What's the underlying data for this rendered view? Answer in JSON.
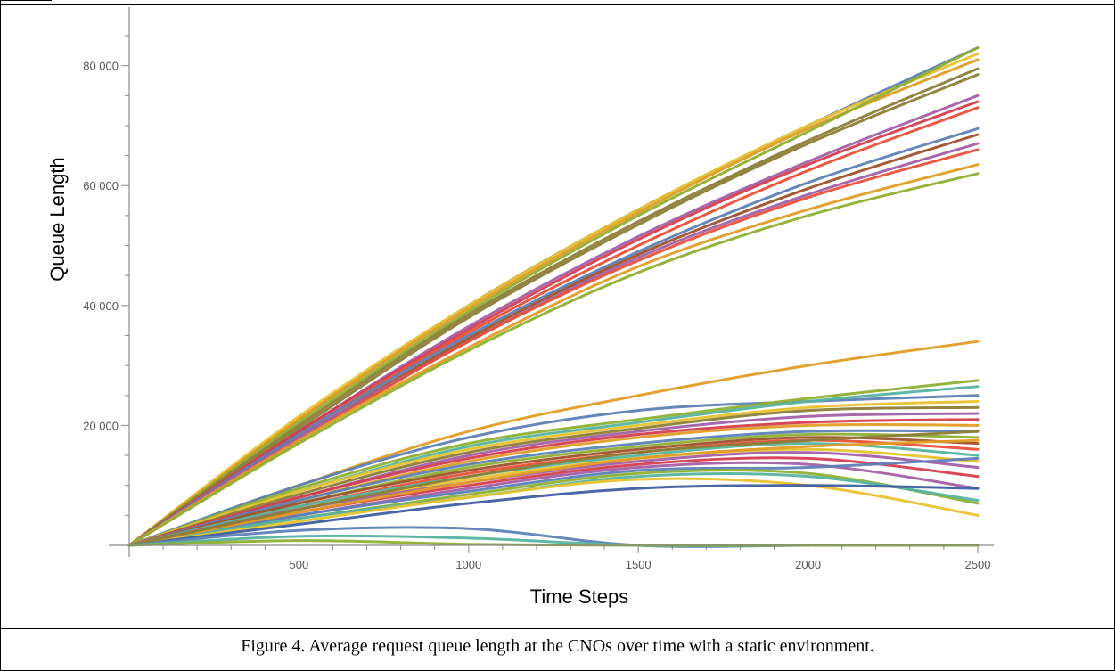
{
  "figure": {
    "caption": "Figure 4.  Average request queue length at the CNOs over time with a static environment."
  },
  "chart_data": {
    "type": "line",
    "title": "",
    "xlabel": "Time Steps",
    "ylabel": "Queue Length",
    "xlim": [
      0,
      2500
    ],
    "ylim": [
      0,
      85000
    ],
    "xticks": [
      500,
      1000,
      1500,
      2000,
      2500
    ],
    "xtick_labels": [
      "500",
      "1000",
      "1500",
      "2000",
      "2500"
    ],
    "yticks": [
      20000,
      40000,
      60000,
      80000
    ],
    "ytick_labels": [
      "20 000",
      "40 000",
      "60 000",
      "80 000"
    ],
    "legend": "none",
    "grid": false,
    "note": "Many unlabeled series; values are approximate samples at x = 0, 500, 1000, 1500, 2000, 2500",
    "x": [
      0,
      500,
      1000,
      1500,
      2000,
      2500
    ],
    "series": [
      {
        "color": "#5E81B5",
        "values": [
          0,
          21000,
          40000,
          56000,
          70000,
          83000
        ]
      },
      {
        "color": "#E8C22E",
        "values": [
          0,
          21500,
          40000,
          56000,
          70000,
          82000
        ]
      },
      {
        "color": "#E19C24",
        "values": [
          0,
          21000,
          39500,
          55500,
          69500,
          81000
        ]
      },
      {
        "color": "#8FB032",
        "values": [
          0,
          20500,
          39000,
          55000,
          69000,
          83000
        ]
      },
      {
        "color": "#8C7D37",
        "values": [
          0,
          20000,
          38500,
          54000,
          67500,
          79500
        ]
      },
      {
        "color": "#8C7D37",
        "values": [
          0,
          19500,
          38000,
          53500,
          67000,
          78500
        ]
      },
      {
        "color": "#A361A8",
        "values": [
          0,
          19000,
          36500,
          51500,
          64000,
          75000
        ]
      },
      {
        "color": "#D53E4F",
        "values": [
          0,
          19000,
          36000,
          51000,
          63500,
          74000
        ]
      },
      {
        "color": "#E8503A",
        "values": [
          0,
          18500,
          35500,
          50000,
          62500,
          73000
        ]
      },
      {
        "color": "#5E81B5",
        "values": [
          0,
          18500,
          35000,
          49000,
          60500,
          69500
        ]
      },
      {
        "color": "#A0522D",
        "values": [
          0,
          18000,
          34500,
          48500,
          59500,
          68500
        ]
      },
      {
        "color": "#A361A8",
        "values": [
          0,
          18000,
          34000,
          48000,
          58500,
          67000
        ]
      },
      {
        "color": "#E8503A",
        "values": [
          0,
          17500,
          34000,
          47500,
          58000,
          66000
        ]
      },
      {
        "color": "#E19C24",
        "values": [
          0,
          17500,
          33000,
          46500,
          56000,
          63500
        ]
      },
      {
        "color": "#8FB032",
        "values": [
          0,
          17000,
          32500,
          45500,
          55000,
          62000
        ]
      },
      {
        "color": "#E19C24",
        "values": [
          0,
          10000,
          19000,
          25000,
          30000,
          34000
        ]
      },
      {
        "color": "#5E81B5",
        "values": [
          0,
          10000,
          18000,
          22500,
          24000,
          25000
        ]
      },
      {
        "color": "#8FB032",
        "values": [
          0,
          9500,
          17000,
          21000,
          24500,
          27500
        ]
      },
      {
        "color": "#56B4A0",
        "values": [
          0,
          9000,
          16500,
          20500,
          24000,
          26500
        ]
      },
      {
        "color": "#E8C22E",
        "values": [
          0,
          9000,
          16000,
          20000,
          23000,
          24000
        ]
      },
      {
        "color": "#8C7D37",
        "values": [
          0,
          8500,
          15500,
          19500,
          22500,
          23000
        ]
      },
      {
        "color": "#A361A8",
        "values": [
          0,
          8000,
          15000,
          19000,
          21500,
          22000
        ]
      },
      {
        "color": "#D53E4F",
        "values": [
          0,
          8000,
          14500,
          18500,
          20500,
          21000
        ]
      },
      {
        "color": "#E19C24",
        "values": [
          0,
          7500,
          14000,
          18000,
          20000,
          20000
        ]
      },
      {
        "color": "#5E81B5",
        "values": [
          0,
          7500,
          13500,
          17000,
          19000,
          19000
        ]
      },
      {
        "color": "#8FB032",
        "values": [
          0,
          7000,
          13000,
          16500,
          18500,
          18000
        ]
      },
      {
        "color": "#A0522D",
        "values": [
          0,
          7000,
          12500,
          16000,
          18000,
          17000
        ]
      },
      {
        "color": "#E8503A",
        "values": [
          0,
          6500,
          12000,
          15500,
          17500,
          16000
        ]
      },
      {
        "color": "#56B4A0",
        "values": [
          0,
          6500,
          11500,
          15000,
          17000,
          15000
        ]
      },
      {
        "color": "#E8C22E",
        "values": [
          0,
          6000,
          11000,
          14500,
          16000,
          14000
        ]
      },
      {
        "color": "#A361A8",
        "values": [
          0,
          6000,
          10500,
          14000,
          15500,
          13000
        ]
      },
      {
        "color": "#D53E4F",
        "values": [
          0,
          5500,
          10000,
          13500,
          14500,
          11500
        ]
      },
      {
        "color": "#A361A8",
        "values": [
          0,
          5000,
          9500,
          13000,
          13500,
          9500
        ]
      },
      {
        "color": "#5E81B5",
        "values": [
          0,
          5000,
          9000,
          12500,
          13000,
          14500
        ]
      },
      {
        "color": "#8FB032",
        "values": [
          0,
          4500,
          8500,
          12000,
          12000,
          7000
        ]
      },
      {
        "color": "#56B4A0",
        "values": [
          0,
          4500,
          8000,
          11500,
          11500,
          7500
        ]
      },
      {
        "color": "#E8C22E",
        "values": [
          0,
          4000,
          8000,
          11000,
          10000,
          5000
        ]
      },
      {
        "color": "#3F5FA0",
        "values": [
          0,
          3500,
          7000,
          9500,
          10000,
          9500
        ]
      },
      {
        "color": "#E19C24",
        "values": [
          0,
          5500,
          10500,
          14500,
          16500,
          17500
        ]
      },
      {
        "color": "#8C7D37",
        "values": [
          0,
          6000,
          11500,
          15500,
          17500,
          19000
        ]
      },
      {
        "color": "#5E81B5",
        "values": [
          0,
          2500,
          2800,
          0,
          0,
          0
        ]
      },
      {
        "color": "#56B4A0",
        "values": [
          0,
          1500,
          1200,
          0,
          0,
          0
        ]
      },
      {
        "color": "#8FB032",
        "values": [
          0,
          800,
          200,
          0,
          0,
          0
        ]
      }
    ]
  }
}
